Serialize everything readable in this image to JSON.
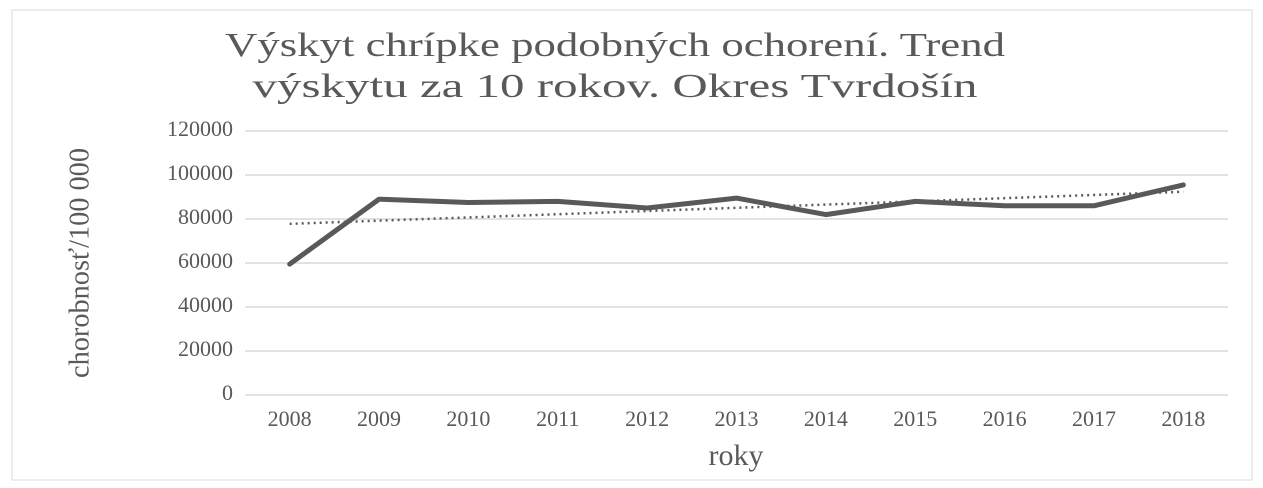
{
  "chart_data": {
    "type": "line",
    "title": [
      "Výskyt chrípke podobných ochorení. Trend",
      "výskytu  za 10 rokov. Okres Tvrdošín"
    ],
    "x_label": "roky",
    "y_label": "chorobnosť/100 000",
    "categories": [
      "2008",
      "2009",
      "2010",
      "2011",
      "2012",
      "2013",
      "2014",
      "2015",
      "2016",
      "2017",
      "2018"
    ],
    "values": [
      59500,
      89000,
      87500,
      88000,
      85000,
      89500,
      82000,
      88000,
      86000,
      86000,
      95500
    ],
    "color": "#595959",
    "trendline": "linear",
    "ylim": [
      0,
      120000
    ],
    "yticks": [
      0,
      20000,
      40000,
      60000,
      80000,
      100000,
      120000
    ],
    "grid": true
  }
}
